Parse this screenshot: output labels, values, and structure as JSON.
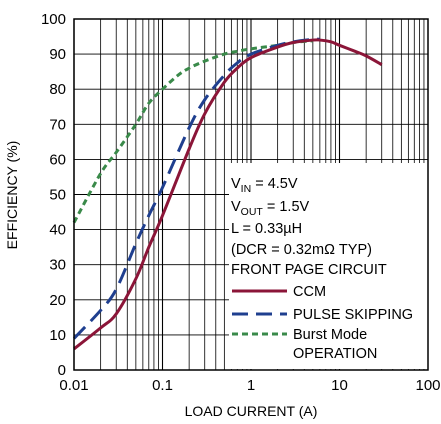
{
  "chart_data": {
    "type": "line",
    "title": "",
    "xlabel": "LOAD CURRENT (A)",
    "ylabel": "EFFICIENCY (%)",
    "xscale": "log",
    "xlim": [
      0.01,
      100
    ],
    "ylim": [
      0,
      100
    ],
    "xticks": [
      {
        "value": 0.01,
        "label": "0.01"
      },
      {
        "value": 0.1,
        "label": "0.1"
      },
      {
        "value": 1,
        "label": "1"
      },
      {
        "value": 10,
        "label": "10"
      },
      {
        "value": 100,
        "label": "100"
      }
    ],
    "yticks": [
      {
        "value": 0,
        "label": "0"
      },
      {
        "value": 10,
        "label": "10"
      },
      {
        "value": 20,
        "label": "20"
      },
      {
        "value": 30,
        "label": "30"
      },
      {
        "value": 40,
        "label": "40"
      },
      {
        "value": 50,
        "label": "50"
      },
      {
        "value": 60,
        "label": "60"
      },
      {
        "value": 70,
        "label": "70"
      },
      {
        "value": 80,
        "label": "80"
      },
      {
        "value": 90,
        "label": "90"
      },
      {
        "value": 100,
        "label": "100"
      }
    ],
    "grid": true,
    "conditions": {
      "vin": {
        "main": "V",
        "sub": "IN",
        "rest": " = 4.5V"
      },
      "vout": {
        "main": "V",
        "sub": "OUT",
        "rest": " = 1.5V"
      },
      "inductor": "L = 0.33µH",
      "dcr": "(DCR = 0.32mΩ TYP)",
      "circuit": "FRONT PAGE CIRCUIT"
    },
    "legend_position": "right",
    "series": [
      {
        "name": "CCM",
        "color": "#8b1538",
        "dash": "solid",
        "points": [
          [
            0.01,
            6
          ],
          [
            0.02,
            12
          ],
          [
            0.03,
            16
          ],
          [
            0.05,
            26
          ],
          [
            0.07,
            35
          ],
          [
            0.1,
            44
          ],
          [
            0.2,
            63
          ],
          [
            0.3,
            73
          ],
          [
            0.5,
            82
          ],
          [
            0.7,
            86
          ],
          [
            1,
            89
          ],
          [
            2,
            92
          ],
          [
            3,
            93.3
          ],
          [
            5,
            94
          ],
          [
            6,
            94
          ],
          [
            8,
            93.5
          ],
          [
            10,
            92.5
          ],
          [
            15,
            90.8
          ],
          [
            20,
            89.5
          ],
          [
            30,
            87
          ]
        ]
      },
      {
        "name": "PULSE SKIPPING",
        "color": "#1f3f8f",
        "dash": "long-dash",
        "points": [
          [
            0.01,
            9
          ],
          [
            0.02,
            17
          ],
          [
            0.03,
            23
          ],
          [
            0.05,
            36
          ],
          [
            0.07,
            44
          ],
          [
            0.1,
            52
          ],
          [
            0.2,
            69
          ],
          [
            0.3,
            77
          ],
          [
            0.5,
            84
          ],
          [
            0.7,
            87.5
          ],
          [
            1,
            90
          ],
          [
            2,
            92.5
          ],
          [
            3,
            93.5
          ],
          [
            5,
            94.2
          ],
          [
            6,
            94.2
          ]
        ]
      },
      {
        "name": "Burst Mode",
        "name_line2": "OPERATION",
        "color": "#3a8a4a",
        "dash": "short-dash",
        "points": [
          [
            0.01,
            42
          ],
          [
            0.02,
            56
          ],
          [
            0.03,
            62
          ],
          [
            0.05,
            70
          ],
          [
            0.07,
            76
          ],
          [
            0.1,
            80
          ],
          [
            0.15,
            84
          ],
          [
            0.2,
            86
          ],
          [
            0.3,
            88
          ],
          [
            0.5,
            90
          ],
          [
            0.7,
            90.8
          ],
          [
            1,
            91.5
          ],
          [
            2,
            92.5
          ],
          [
            3,
            93.3
          ],
          [
            5,
            93.8
          ]
        ]
      }
    ]
  }
}
